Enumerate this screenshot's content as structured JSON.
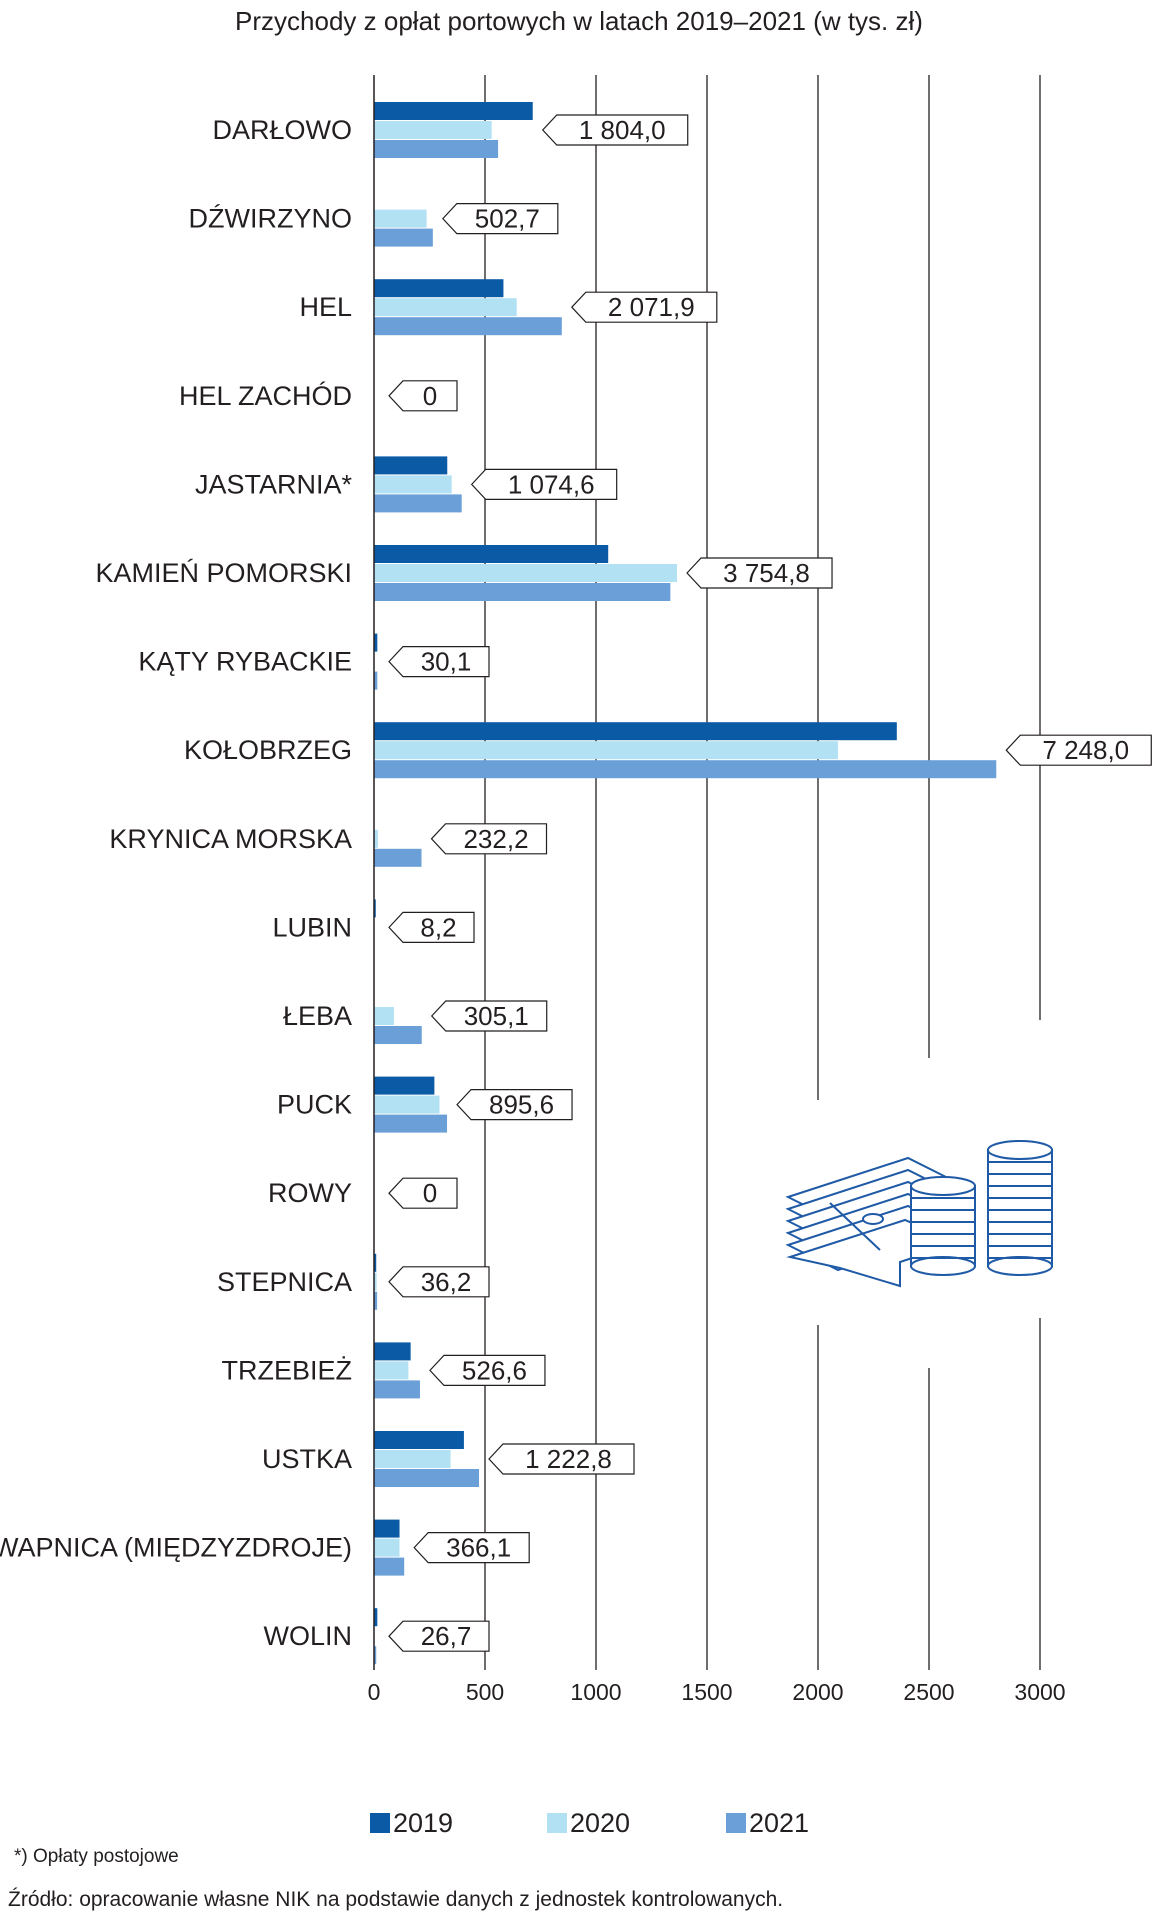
{
  "chart_data": {
    "type": "bar",
    "orientation": "horizontal",
    "title": "Przychody z opłat portowych w latach 2019–2021 (w tys. zł)",
    "categories": [
      "DARŁOWO",
      "DŹWIRZYNO",
      "HEL",
      "HEL ZACHÓD",
      "JASTARNIA*",
      "KAMIEŃ POMORSKI",
      "KĄTY RYBACKIE",
      "KOŁOBRZEG",
      "KRYNICA MORSKA",
      "LUBIN",
      "ŁEBA",
      "PUCK",
      "ROWY",
      "STEPNICA",
      "TRZEBIEŻ",
      "USTKA",
      "WAPNICA (MIĘDZYZDROJE)",
      "WOLIN"
    ],
    "series": [
      {
        "name": "2019",
        "color": "#0a5aa5",
        "values": [
          715,
          0,
          583,
          0,
          330,
          1055,
          15,
          2355,
          0,
          8,
          0,
          272,
          0,
          10,
          165,
          405,
          115,
          15
        ]
      },
      {
        "name": "2020",
        "color": "#b3e1f4",
        "values": [
          530,
          237,
          643,
          0,
          350,
          1365,
          0,
          2090,
          18,
          0,
          90,
          295,
          0,
          12,
          155,
          345,
          115,
          2
        ]
      },
      {
        "name": "2021",
        "color": "#6a9fd8",
        "values": [
          559,
          265,
          846,
          0,
          395,
          1335,
          15,
          2803,
          214,
          0,
          215,
          329,
          0,
          14,
          207,
          473,
          136,
          10
        ]
      }
    ],
    "totals": [
      "1 804,0",
      "502,7",
      "2 071,9",
      "0",
      "1 074,6",
      "3 754,8",
      "30,1",
      "7 248,0",
      "232,2",
      "8,2",
      "305,1",
      "895,6",
      "0",
      "36,2",
      "526,6",
      "1 222,8",
      "366,1",
      "26,7"
    ],
    "x_ticks": [
      0,
      500,
      1000,
      1500,
      2000,
      2500,
      3000
    ],
    "x_tick_labels": [
      "0",
      "500",
      "1000",
      "1500",
      "2000",
      "2500",
      "3000"
    ],
    "xlim": [
      0,
      3000
    ],
    "grid": true,
    "legend_position": "bottom"
  },
  "footnote": "*)  Opłaty postojowe",
  "source": "Źródło: opracowanie własne NIK na podstawie danych z jednostek kontrolowanych.",
  "icon": "money-stacks-coins-icon",
  "colors": {
    "axis": "#231f20",
    "grid": "#231f20",
    "icon": "#1f5aa6"
  }
}
